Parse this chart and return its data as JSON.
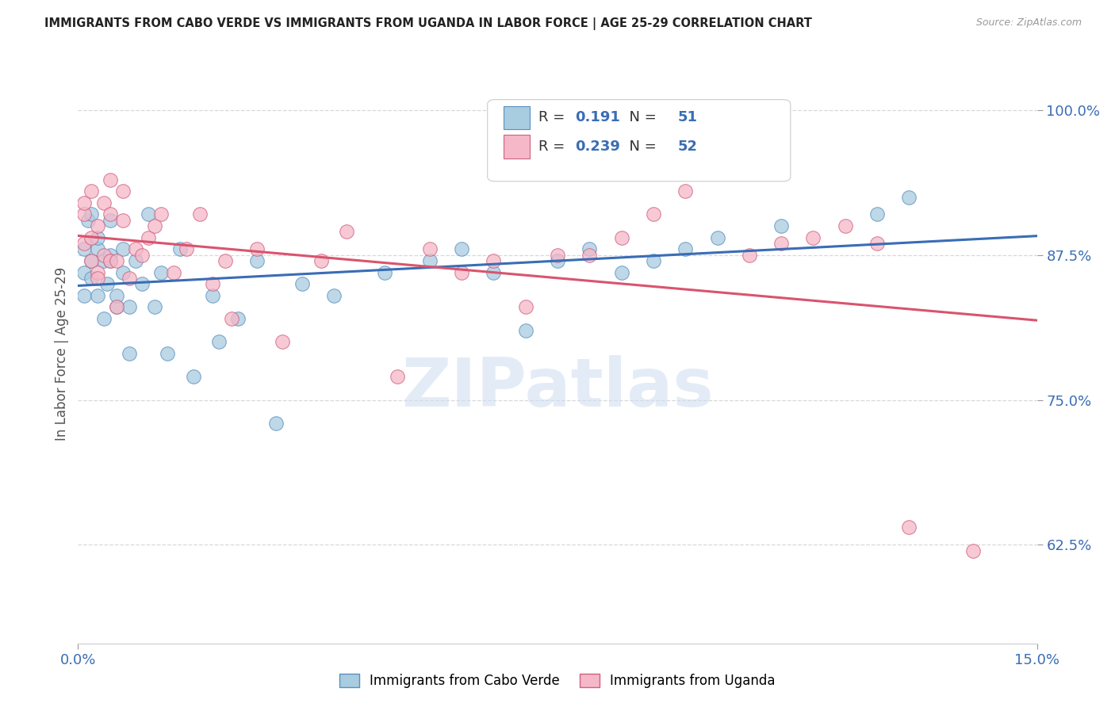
{
  "title": "IMMIGRANTS FROM CABO VERDE VS IMMIGRANTS FROM UGANDA IN LABOR FORCE | AGE 25-29 CORRELATION CHART",
  "source": "Source: ZipAtlas.com",
  "legend_blue_r": "0.191",
  "legend_blue_n": "51",
  "legend_pink_r": "0.239",
  "legend_pink_n": "52",
  "legend_label_blue": "Immigrants from Cabo Verde",
  "legend_label_pink": "Immigrants from Uganda",
  "ylabel_label": "In Labor Force | Age 25-29",
  "watermark_text": "ZIPatlas",
  "blue_scatter_color": "#a8cce0",
  "blue_scatter_edge": "#5a8fc0",
  "pink_scatter_color": "#f5b8c8",
  "pink_scatter_edge": "#d06080",
  "trendline_blue_color": "#3a6db5",
  "trendline_pink_color": "#d9546e",
  "dashed_line_color": "#c8c8c8",
  "grid_color": "#d8d8d8",
  "tick_color": "#3a6db5",
  "background": "#ffffff",
  "xmin": 0.0,
  "xmax": 0.15,
  "ymin": 0.54,
  "ymax": 1.04,
  "ytick_positions": [
    0.625,
    0.75,
    0.875,
    1.0
  ],
  "ytick_labels": [
    "62.5%",
    "75.0%",
    "87.5%",
    "100.0%"
  ],
  "xtick_positions": [
    0.0,
    0.15
  ],
  "xtick_labels": [
    "0.0%",
    "15.0%"
  ],
  "cabo_verde_x": [
    0.001,
    0.001,
    0.001,
    0.0015,
    0.002,
    0.002,
    0.002,
    0.003,
    0.003,
    0.003,
    0.004,
    0.004,
    0.0045,
    0.005,
    0.005,
    0.005,
    0.006,
    0.006,
    0.007,
    0.007,
    0.008,
    0.008,
    0.009,
    0.01,
    0.011,
    0.012,
    0.013,
    0.014,
    0.016,
    0.018,
    0.021,
    0.022,
    0.025,
    0.028,
    0.031,
    0.035,
    0.04,
    0.048,
    0.055,
    0.06,
    0.065,
    0.07,
    0.075,
    0.08,
    0.085,
    0.09,
    0.095,
    0.1,
    0.11,
    0.125,
    0.13
  ],
  "cabo_verde_y": [
    0.88,
    0.84,
    0.86,
    0.905,
    0.91,
    0.855,
    0.87,
    0.88,
    0.84,
    0.89,
    0.87,
    0.82,
    0.85,
    0.875,
    0.905,
    0.87,
    0.83,
    0.84,
    0.88,
    0.86,
    0.79,
    0.83,
    0.87,
    0.85,
    0.91,
    0.83,
    0.86,
    0.79,
    0.88,
    0.77,
    0.84,
    0.8,
    0.82,
    0.87,
    0.73,
    0.85,
    0.84,
    0.86,
    0.87,
    0.88,
    0.86,
    0.81,
    0.87,
    0.88,
    0.86,
    0.87,
    0.88,
    0.89,
    0.9,
    0.91,
    0.925
  ],
  "uganda_x": [
    0.001,
    0.001,
    0.001,
    0.002,
    0.002,
    0.002,
    0.003,
    0.003,
    0.003,
    0.004,
    0.004,
    0.005,
    0.005,
    0.005,
    0.006,
    0.006,
    0.007,
    0.007,
    0.008,
    0.009,
    0.01,
    0.011,
    0.012,
    0.013,
    0.015,
    0.017,
    0.019,
    0.021,
    0.023,
    0.024,
    0.028,
    0.032,
    0.038,
    0.042,
    0.05,
    0.055,
    0.06,
    0.065,
    0.07,
    0.075,
    0.08,
    0.085,
    0.09,
    0.095,
    0.1,
    0.105,
    0.11,
    0.115,
    0.12,
    0.125,
    0.13,
    0.14
  ],
  "uganda_y": [
    0.885,
    0.91,
    0.92,
    0.87,
    0.93,
    0.89,
    0.9,
    0.86,
    0.855,
    0.92,
    0.875,
    0.87,
    0.91,
    0.94,
    0.87,
    0.83,
    0.905,
    0.93,
    0.855,
    0.88,
    0.875,
    0.89,
    0.9,
    0.91,
    0.86,
    0.88,
    0.91,
    0.85,
    0.87,
    0.82,
    0.88,
    0.8,
    0.87,
    0.895,
    0.77,
    0.88,
    0.86,
    0.87,
    0.83,
    0.875,
    0.875,
    0.89,
    0.91,
    0.93,
    0.96,
    0.875,
    0.885,
    0.89,
    0.9,
    0.885,
    0.64,
    0.62
  ]
}
